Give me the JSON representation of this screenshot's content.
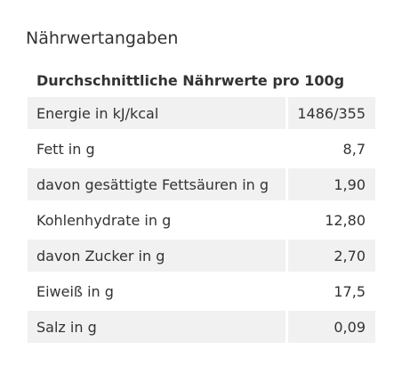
{
  "section": {
    "title": "Nährwertangaben"
  },
  "table": {
    "header": "Durchschnittliche Nährwerte pro 100g",
    "rows": [
      {
        "label": "Energie in kJ/kcal",
        "value": "1486/355"
      },
      {
        "label": "Fett in g",
        "value": "8,7"
      },
      {
        "label": "davon gesättigte Fettsäuren in g",
        "value": "1,90"
      },
      {
        "label": "Kohlenhydrate in g",
        "value": "12,80"
      },
      {
        "label": "davon Zucker in g",
        "value": "2,70"
      },
      {
        "label": "Eiweiß in g",
        "value": "17,5"
      },
      {
        "label": "Salz in g",
        "value": "0,09"
      }
    ]
  },
  "colors": {
    "text": "#333333",
    "row_stripe": "#f1f1f1",
    "background": "#ffffff"
  }
}
